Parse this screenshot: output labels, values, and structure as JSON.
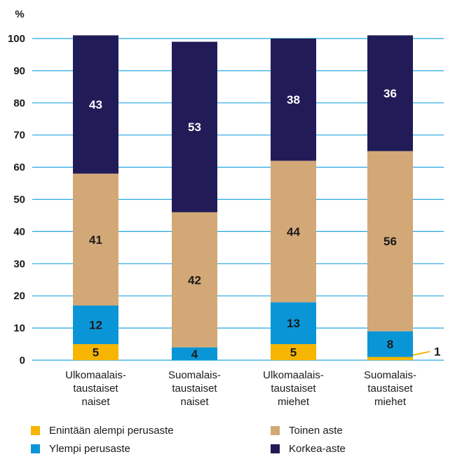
{
  "chart_data": {
    "type": "bar",
    "stacked": true,
    "ylabel": "%",
    "ylim": [
      0,
      100
    ],
    "yticks": [
      0,
      10,
      20,
      30,
      40,
      50,
      60,
      70,
      80,
      90,
      100
    ],
    "grid": true,
    "legend_position": "bottom",
    "categories": [
      [
        "Ulkomaalais-",
        "taustaiset",
        "naiset"
      ],
      [
        "Suomalais-",
        "taustaiset",
        "naiset"
      ],
      [
        "Ulkomaalais-",
        "taustaiset",
        "miehet"
      ],
      [
        "Suomalais-",
        "taustaiset",
        "miehet"
      ]
    ],
    "series": [
      {
        "name": "Enintään alempi perusaste",
        "color": "#f6b500",
        "values": [
          5,
          0,
          5,
          1
        ],
        "labels": [
          "5",
          "",
          "5",
          "1"
        ]
      },
      {
        "name": "Ylempi perusaste",
        "color": "#0a96d6",
        "values": [
          12,
          4,
          13,
          8
        ],
        "labels": [
          "12",
          "4",
          "13",
          "8"
        ]
      },
      {
        "name": "Toinen aste",
        "color": "#d3a877",
        "values": [
          41,
          42,
          44,
          56
        ],
        "labels": [
          "41",
          "42",
          "44",
          "56"
        ]
      },
      {
        "name": "Korkea-aste",
        "color": "#211c57",
        "values": [
          43,
          53,
          38,
          36
        ],
        "labels": [
          "43",
          "53",
          "38",
          "36"
        ]
      }
    ]
  }
}
